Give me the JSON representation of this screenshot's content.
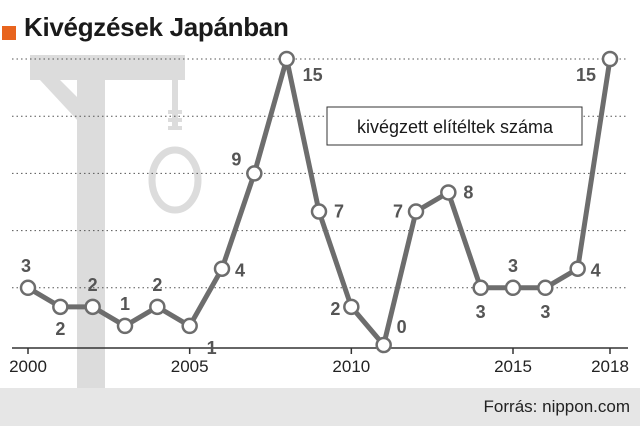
{
  "title": "Kivégzések Japánban",
  "source": "Forrás: nippon.com",
  "colors": {
    "accent": "#e8641e",
    "line": "#6d6d6d",
    "illustration": "#dcdcdc",
    "grid": "#555555",
    "text": "#555555"
  },
  "icons": [
    "gallows-illustration",
    "noose-icon"
  ],
  "chart_data": {
    "type": "line",
    "title": "Kivégzések Japánban",
    "legend": {
      "label": "kivégzett elítéltek száma",
      "placement": "top-right"
    },
    "x": [
      2000,
      2001,
      2002,
      2003,
      2004,
      2005,
      2006,
      2007,
      2008,
      2009,
      2010,
      2011,
      2012,
      2013,
      2014,
      2015,
      2016,
      2017,
      2018
    ],
    "series": [
      {
        "name": "kivégzett elítéltek száma",
        "values": [
          3,
          2,
          2,
          1,
          2,
          1,
          4,
          9,
          15,
          7,
          2,
          0,
          7,
          8,
          3,
          3,
          3,
          4,
          15
        ]
      }
    ],
    "data_labels": [
      "3",
      "2",
      "2",
      "1",
      "2",
      "1",
      "4",
      "9",
      "15",
      "7",
      "2",
      "0",
      "7",
      "8",
      "3",
      "3",
      "3",
      "4",
      "15"
    ],
    "x_ticks": [
      "2000",
      "2005",
      "2010",
      "2015",
      "2018"
    ],
    "xlim": [
      2000,
      2018
    ],
    "ylim": [
      0,
      15
    ],
    "grid": "horizontal dotted"
  }
}
